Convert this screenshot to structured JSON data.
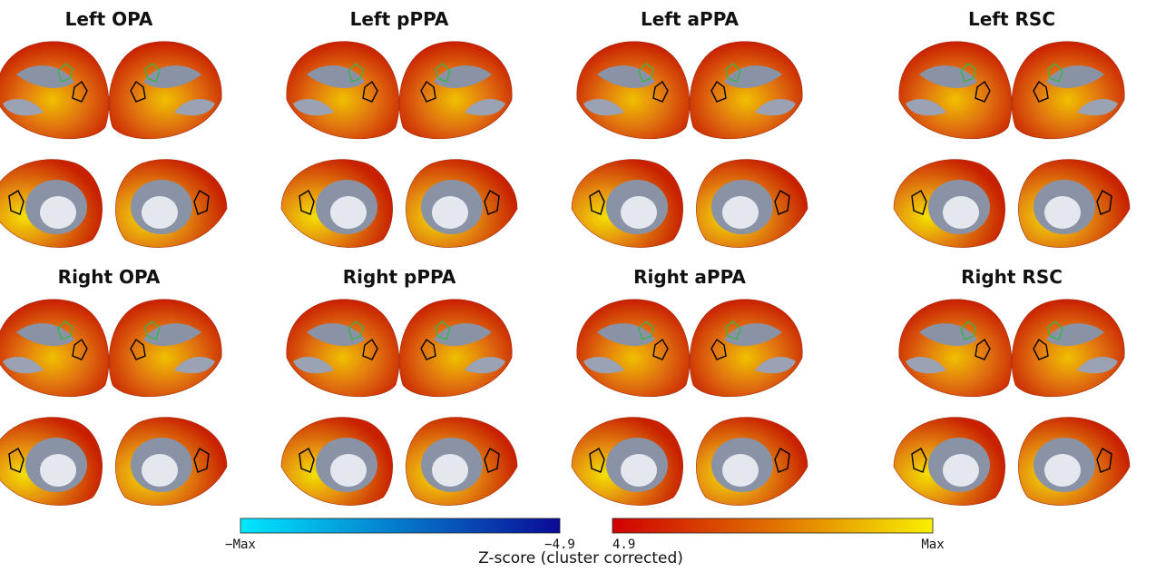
{
  "panels": [
    {
      "title": "Left OPA"
    },
    {
      "title": "Left pPPA"
    },
    {
      "title": "Left aPPA"
    },
    {
      "title": "Left RSC"
    },
    {
      "title": "Right OPA"
    },
    {
      "title": "Right pPPA"
    },
    {
      "title": "Right aPPA"
    },
    {
      "title": "Right RSC"
    }
  ],
  "colorbar": {
    "title": "Z-score (cluster corrected)",
    "negative": {
      "colors": [
        "#00e8ff",
        "#0a0a96"
      ],
      "labels": [
        "−Max",
        "−4.9"
      ]
    },
    "positive": {
      "colors": [
        "#d00000",
        "#e07000",
        "#f8f000"
      ],
      "labels": [
        "4.9",
        "Max"
      ]
    }
  }
}
